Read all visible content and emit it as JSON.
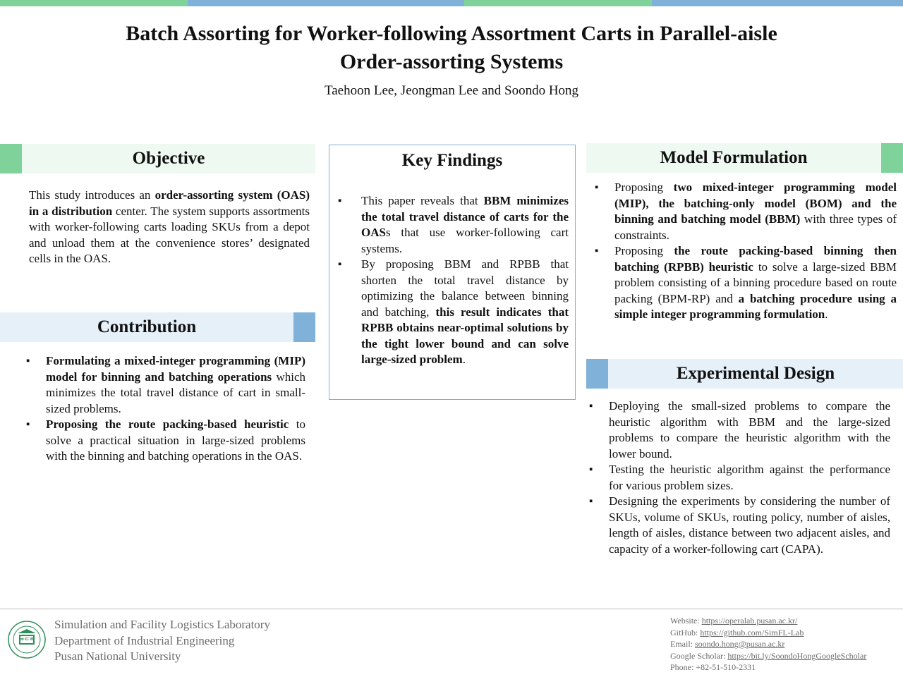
{
  "colors": {
    "green_accent": "#7fd39a",
    "green_light": "#eefaf1",
    "blue_accent": "#7fb1d9",
    "blue_light": "#e6f0f9"
  },
  "header": {
    "title_line1": "Batch Assorting for Worker-following Assortment Carts in Parallel-aisle",
    "title_line2": "Order-assorting Systems",
    "authors": "Taehoon Lee, Jeongman Lee and Soondo Hong"
  },
  "objective": {
    "heading": "Objective",
    "p1": "This study introduces an ",
    "b1": "order-assorting system (OAS) in a distribution",
    "p2": " center. The system supports assortments with worker-following carts loading SKUs from a depot and unload them at the convenience stores’ designated cells in the OAS."
  },
  "contribution": {
    "heading": "Contribution",
    "items": [
      {
        "bold": "Formulating a mixed-integer programming (MIP) model for binning and batching operations",
        "text": " which minimizes the total travel distance of cart in small-sized problems."
      },
      {
        "bold": "Proposing the route packing-based heuristic",
        "text": " to solve a practical situation in large-sized problems with the binning and batching operations in the OAS."
      }
    ]
  },
  "key_findings": {
    "heading": "Key Findings",
    "item1_pre": "This paper reveals that ",
    "item1_bold": "BBM minimizes the total travel distance of carts for the OAS",
    "item1_post": "s that use worker-following cart systems.",
    "item2_pre": "By proposing BBM and RPBB that shorten the total travel distance by optimizing the balance between binning and batching, ",
    "item2_bold": "this result indicates that RPBB obtains near-optimal solutions by the tight lower bound and can solve large-sized problem",
    "item2_post": "."
  },
  "model_formulation": {
    "heading": "Model Formulation",
    "item1_pre": "Proposing ",
    "item1_bold": "two mixed-integer programming model (MIP), the batching-only model (BOM) and the binning and batching model (BBM)",
    "item1_post": " with three types of constraints.",
    "item2_pre": "Proposing ",
    "item2_bold1": "the route packing-based binning then batching (RPBB) heuristic",
    "item2_mid": " to solve a large-sized BBM problem consisting of a binning procedure based on route packing (BPM-RP) and ",
    "item2_bold2": "a batching procedure using a simple integer programming formulation",
    "item2_post": "."
  },
  "experimental_design": {
    "heading": "Experimental Design",
    "items": [
      "Deploying the small-sized problems to compare the heuristic algorithm with BBM and the large-sized problems to compare the heuristic algorithm with the lower bound.",
      "Testing the heuristic algorithm against the performance for various problem sizes.",
      "Designing the experiments by considering the number of SKUs, volume of SKUs, routing policy, number of aisles, length of aisles, distance between two adjacent aisles, and capacity of a worker-following cart (CAPA)."
    ]
  },
  "footer": {
    "lab_lines": [
      "Simulation and Facility Logistics Laboratory",
      "Department of Industrial Engineering",
      "Pusan National University"
    ],
    "logo_text": "ᄇᄃᄒ",
    "contact": {
      "website_label": "Website: ",
      "website": "https://operalab.pusan.ac.kr/",
      "github_label": "GitHub: ",
      "github": "https://github.com/SimFL-Lab",
      "email_label": "Email: ",
      "email": "soondo.hong@pusan.ac.kr",
      "scholar_label": "Google Scholar: ",
      "scholar": "https://bit.ly/SoondoHongGoogleScholar",
      "phone": "Phone: +82-51-510-2331"
    }
  }
}
